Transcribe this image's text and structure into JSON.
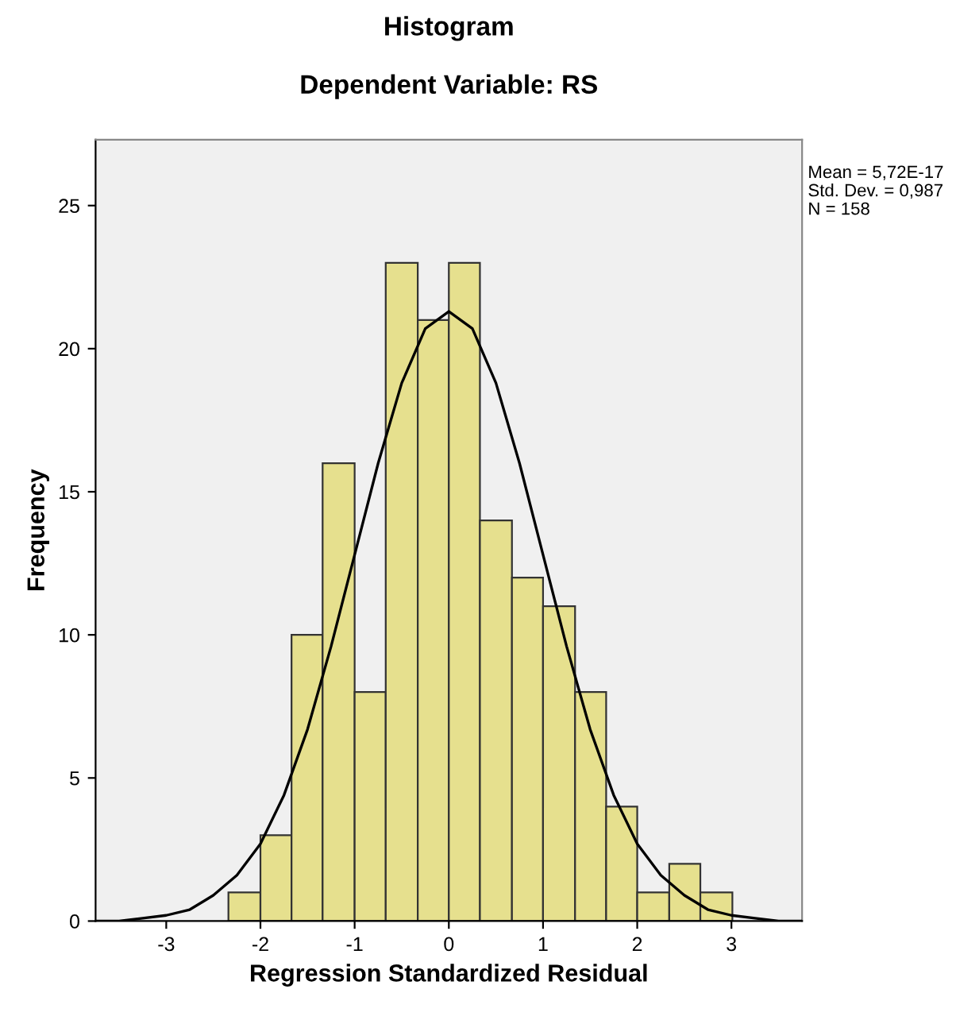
{
  "chart_data": {
    "type": "histogram",
    "title": "Histogram",
    "subtitle": "Dependent Variable: RS",
    "xlabel": "Regression Standardized Residual",
    "ylabel": "Frequency",
    "annotations": [
      "Mean = 5,72E-17",
      "Std. Dev. = 0,987",
      "N = 158"
    ],
    "series": [
      {
        "color": "#e6e08e",
        "bins": [
          -2.34,
          -2.0,
          -1.67,
          -1.34,
          -1.0,
          -0.67,
          -0.33,
          0,
          0.33,
          0.67,
          1.0,
          1.34,
          1.67,
          2.0,
          2.34,
          2.67,
          3.01
        ],
        "values": [
          1,
          3,
          10,
          16,
          8,
          23,
          21,
          23,
          14,
          12,
          11,
          8,
          4,
          1,
          2,
          1
        ]
      },
      {
        "type": "line",
        "color": "#000000",
        "x": [
          -3.75,
          -3.5,
          -3.25,
          -3.0,
          -2.75,
          -2.5,
          -2.25,
          -2.0,
          -1.75,
          -1.5,
          -1.25,
          -1.0,
          -0.75,
          -0.5,
          -0.25,
          0,
          0.25,
          0.5,
          0.75,
          1.0,
          1.25,
          1.5,
          1.75,
          2.0,
          2.25,
          2.5,
          2.75,
          3.0,
          3.25,
          3.5,
          3.75
        ],
        "values": [
          0,
          0,
          0.1,
          0.2,
          0.4,
          0.9,
          1.6,
          2.7,
          4.4,
          6.7,
          9.6,
          12.8,
          16.0,
          18.8,
          20.7,
          21.3,
          20.7,
          18.8,
          16.0,
          12.8,
          9.6,
          6.7,
          4.4,
          2.7,
          1.6,
          0.9,
          0.4,
          0.2,
          0.1,
          0,
          0
        ]
      }
    ],
    "xlim": [
      -3.75,
      3.75
    ],
    "ylim": [
      0,
      27.3
    ],
    "xticks": [
      -3,
      -2,
      -1,
      0,
      1,
      2,
      3
    ],
    "yticks": [
      0,
      5,
      10,
      15,
      20,
      25
    ],
    "grid": false
  }
}
